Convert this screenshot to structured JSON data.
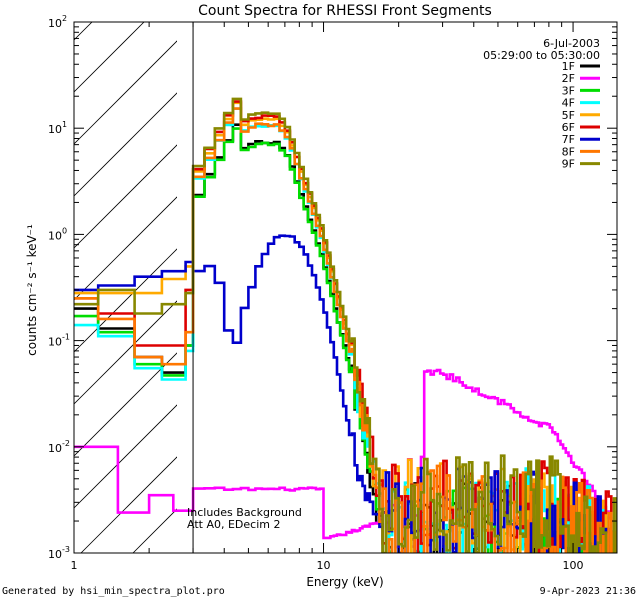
{
  "chart_data": {
    "type": "line",
    "title": "Count Spectra for RHESSI Front Segments",
    "xlabel": "Energy (keV)",
    "ylabel": "counts cm⁻² s⁻¹ keV⁻¹",
    "xscale": "log",
    "yscale": "log",
    "xlim": [
      1,
      150
    ],
    "ylim": [
      0.001,
      100
    ],
    "x_ticks": [
      {
        "value": 1,
        "label": "1"
      },
      {
        "value": 10,
        "label": "10"
      },
      {
        "value": 100,
        "label": "100"
      }
    ],
    "y_ticks": [
      {
        "value": 0.001,
        "label_base": "10",
        "label_exp": "-3"
      },
      {
        "value": 0.01,
        "label_base": "10",
        "label_exp": "-2"
      },
      {
        "value": 0.1,
        "label_base": "10",
        "label_exp": "-1"
      },
      {
        "value": 1,
        "label_base": "10",
        "label_exp": "0"
      },
      {
        "value": 10,
        "label_base": "10",
        "label_exp": "1"
      },
      {
        "value": 100,
        "label_base": "10",
        "label_exp": "2"
      }
    ],
    "date": "6-Jul-2003",
    "time_range": "05:29:00 to 05:30:00",
    "excluded_region_keV": [
      1,
      3
    ],
    "notes": [
      "Includes Background",
      "Att A0, EDecim 2"
    ],
    "series": [
      {
        "name": "1F",
        "color": "#000000",
        "shape": "std",
        "scale": 0.74,
        "low": [
          0.2,
          0.13,
          0.13,
          0.07,
          0.07,
          0.05,
          0.05,
          0.09,
          0.18
        ]
      },
      {
        "name": "2F",
        "color": "#ff00ff",
        "shape": "twoF",
        "scale": 1.0,
        "low": [
          0.01,
          0.01,
          0.0024,
          0.0024,
          0.0035,
          0.0035,
          0.0025,
          0.0025,
          0.009
        ]
      },
      {
        "name": "3F",
        "color": "#00dd00",
        "shape": "std",
        "scale": 0.71,
        "low": [
          0.17,
          0.12,
          0.12,
          0.06,
          0.06,
          0.047,
          0.047,
          0.09,
          0.2
        ]
      },
      {
        "name": "4F",
        "color": "#00ffff",
        "shape": "std",
        "scale": 1.05,
        "low": [
          0.14,
          0.11,
          0.11,
          0.055,
          0.055,
          0.043,
          0.043,
          0.08,
          0.19
        ]
      },
      {
        "name": "5F",
        "color": "#ffaa00",
        "shape": "std",
        "scale": 1.22,
        "low": [
          0.28,
          0.28,
          0.28,
          0.28,
          0.28,
          0.38,
          0.38,
          0.5,
          0.3
        ]
      },
      {
        "name": "6F",
        "color": "#dd0000",
        "shape": "std",
        "scale": 1.28,
        "low": [
          0.25,
          0.18,
          0.18,
          0.09,
          0.09,
          0.09,
          0.09,
          0.3,
          0.25
        ]
      },
      {
        "name": "7F",
        "color": "#0000cc",
        "shape": "sevenF",
        "scale": 1.0,
        "low": [
          0.3,
          0.33,
          0.33,
          0.4,
          0.4,
          0.45,
          0.45,
          0.55,
          0.55
        ]
      },
      {
        "name": "8F",
        "color": "#ff7700",
        "shape": "std",
        "scale": 1.08,
        "low": [
          0.25,
          0.16,
          0.16,
          0.07,
          0.07,
          0.06,
          0.06,
          0.12,
          0.22
        ]
      },
      {
        "name": "9F",
        "color": "#888800",
        "shape": "std",
        "scale": 1.36,
        "low": [
          0.22,
          0.3,
          0.3,
          0.18,
          0.18,
          0.22,
          0.22,
          0.28,
          0.33
        ]
      }
    ]
  },
  "footer": {
    "left": "Generated by hsi_min_spectra_plot.pro",
    "right": "9-Apr-2023 21:36"
  },
  "colors": {
    "frame": "#000000",
    "background": "#ffffff"
  }
}
